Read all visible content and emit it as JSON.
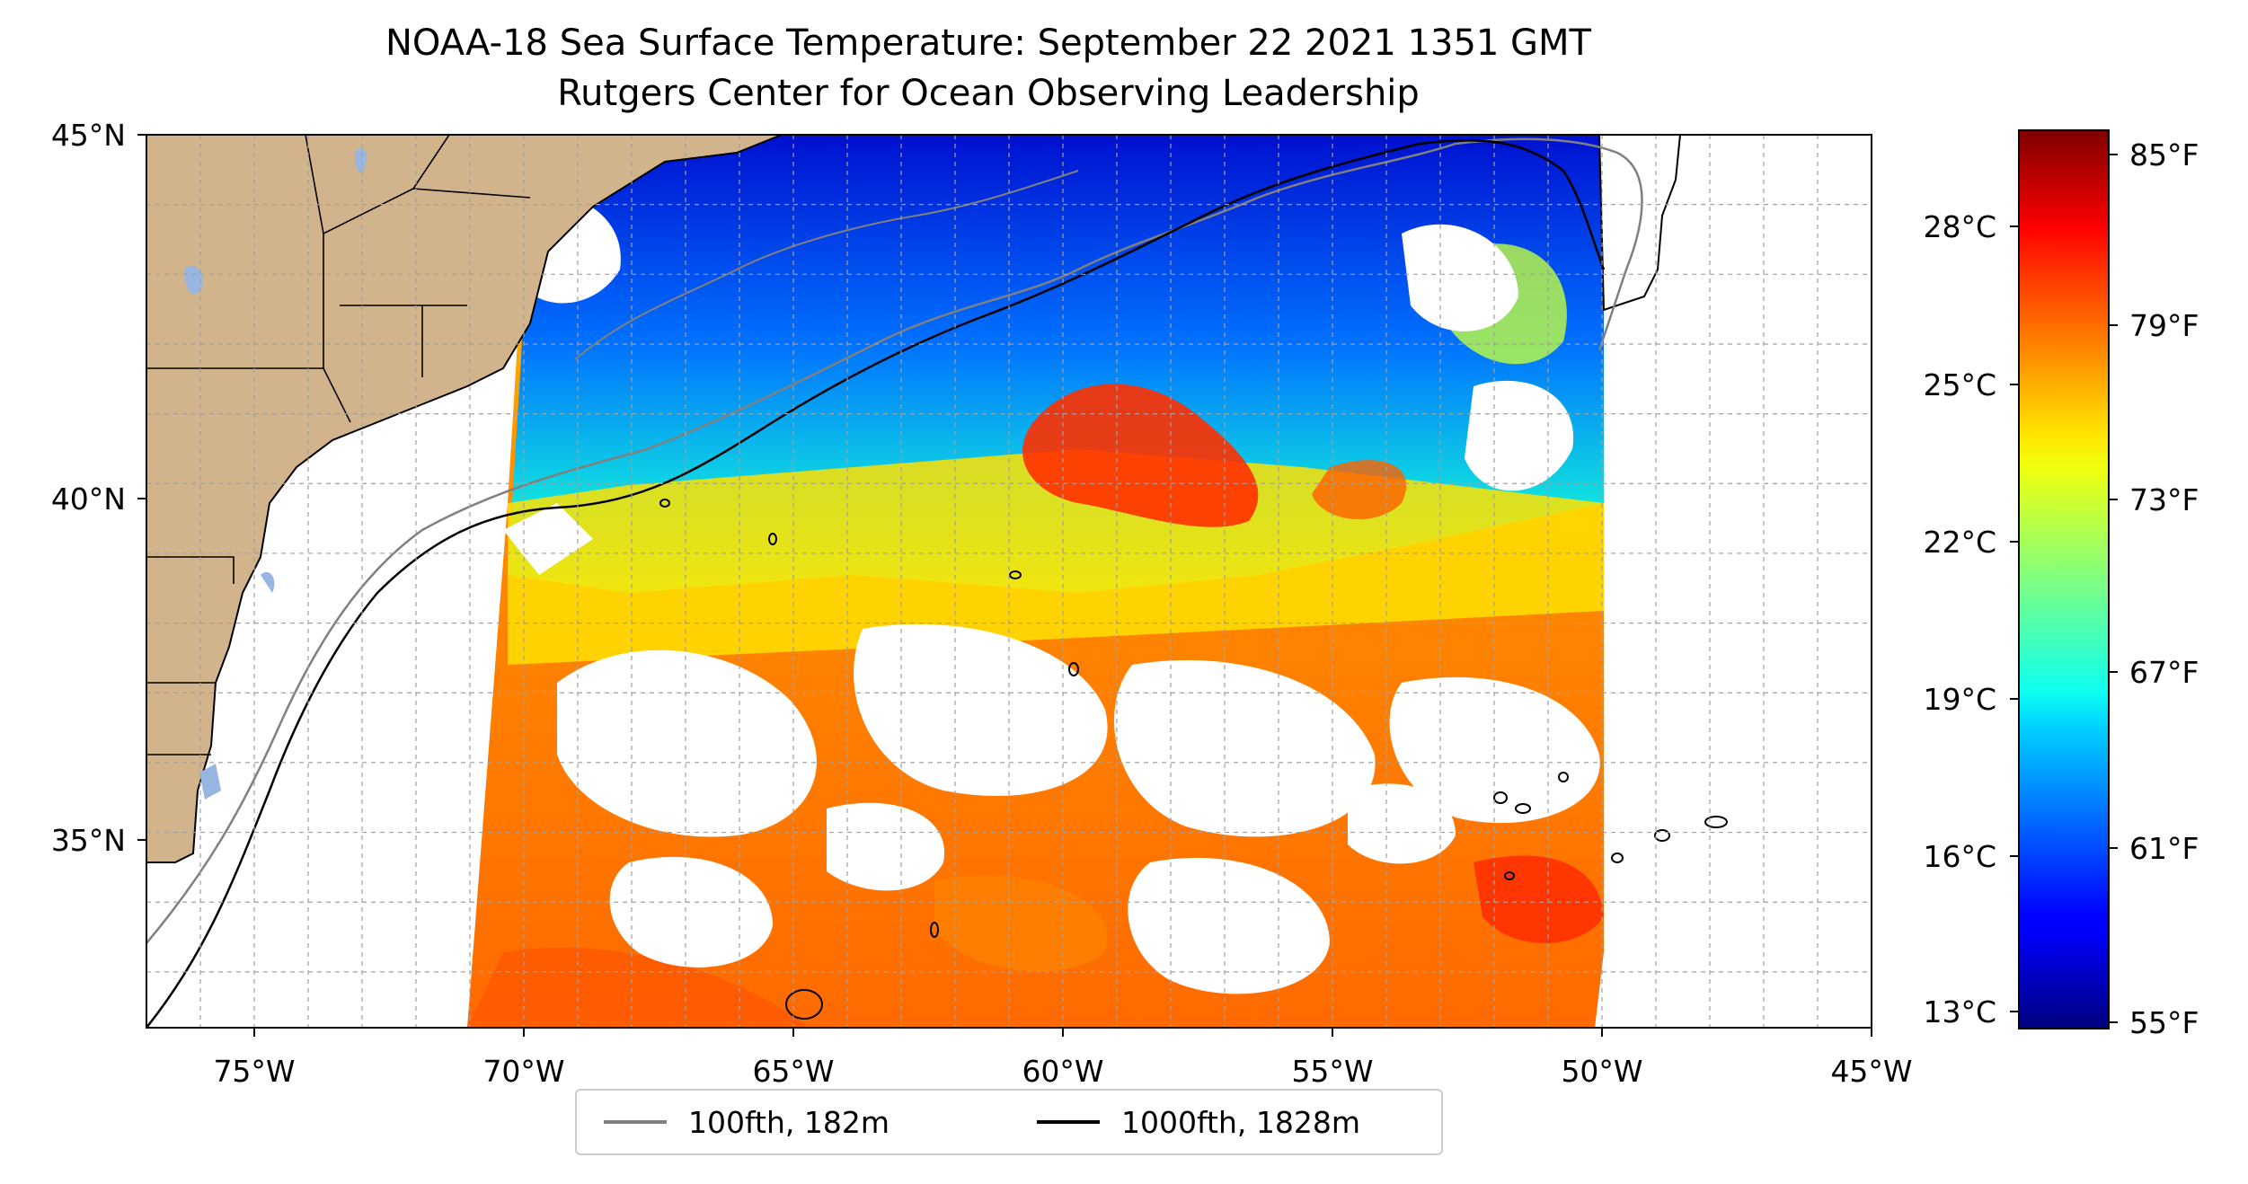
{
  "title": {
    "line1": "NOAA-18 Sea Surface Temperature: September 22 2021 1351 GMT",
    "line2": "Rutgers Center for Ocean Observing Leadership"
  },
  "map": {
    "lon_ticks": [
      "75°W",
      "70°W",
      "65°W",
      "60°W",
      "55°W",
      "50°W",
      "45°W"
    ],
    "lat_ticks": [
      "45°N",
      "40°N",
      "35°N"
    ],
    "lon_range": [
      -77,
      -45
    ],
    "lat_range": [
      32.2,
      45
    ],
    "grid": true,
    "land_color": "#d2b48c",
    "lake_color": "#97b6e1"
  },
  "colorbar": {
    "celsius_labels": [
      "28°C",
      "25°C",
      "22°C",
      "19°C",
      "16°C",
      "13°C"
    ],
    "fahrenheit_labels": [
      "85°F",
      "79°F",
      "73°F",
      "67°F",
      "61°F",
      "55°F"
    ],
    "colormap": "jet",
    "range_f": [
      54.5,
      86
    ]
  },
  "legend": {
    "items": [
      {
        "label": "100fth, 182m",
        "color": "#808080"
      },
      {
        "label": "1000fth, 1828m",
        "color": "#000000"
      }
    ]
  }
}
